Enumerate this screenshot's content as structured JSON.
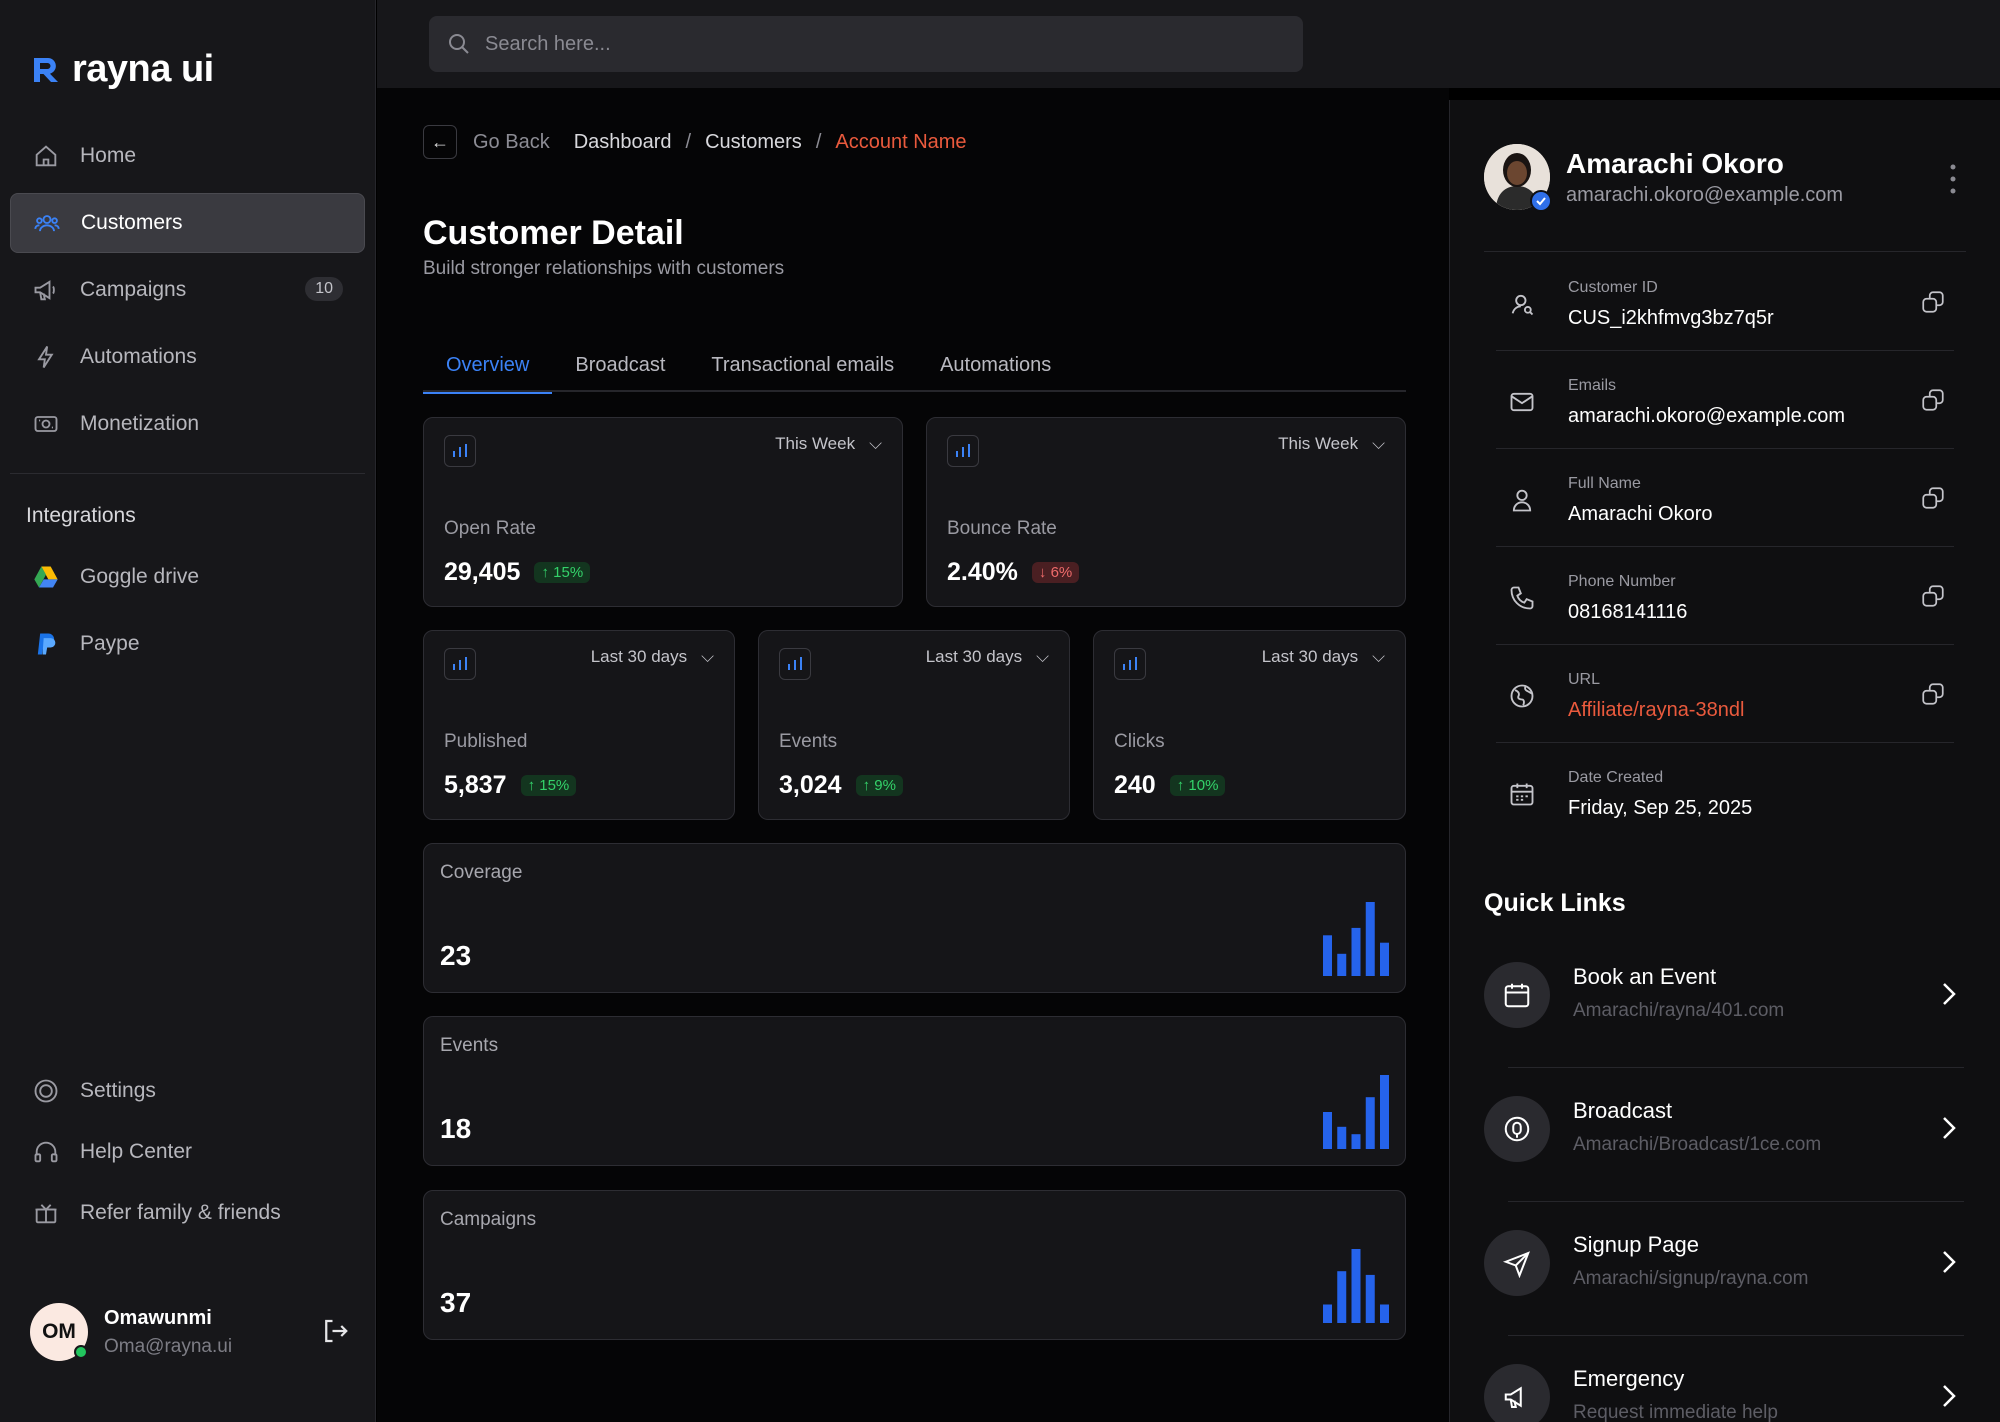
{
  "brand": {
    "name": "rayna ui"
  },
  "search": {
    "placeholder": "Search here..."
  },
  "sidebar": {
    "items": [
      {
        "label": "Home",
        "icon": "home-icon"
      },
      {
        "label": "Customers",
        "icon": "users-icon",
        "active": true
      },
      {
        "label": "Campaigns",
        "icon": "megaphone-icon",
        "badge": "10"
      },
      {
        "label": "Automations",
        "icon": "bolt-icon"
      },
      {
        "label": "Monetization",
        "icon": "cash-icon"
      }
    ],
    "integrations_title": "Integrations",
    "integrations": [
      {
        "label": "Goggle drive",
        "icon": "google-drive-icon"
      },
      {
        "label": "Paype",
        "icon": "paypal-icon"
      }
    ],
    "bottom": [
      {
        "label": "Settings",
        "icon": "settings-icon"
      },
      {
        "label": "Help Center",
        "icon": "headset-icon"
      },
      {
        "label": "Refer family & friends",
        "icon": "gift-icon"
      }
    ],
    "user": {
      "initials": "OM",
      "name": "Omawunmi",
      "email": "Oma@rayna.ui",
      "status": "online"
    }
  },
  "breadcrumb": {
    "back": "Go Back",
    "items": [
      "Dashboard",
      "Customers"
    ],
    "current": "Account Name",
    "sep": "/"
  },
  "page": {
    "title": "Customer Detail",
    "subtitle": "Build stronger relationships with customers"
  },
  "tabs": [
    "Overview",
    "Broadcast",
    "Transactional emails",
    "Automations"
  ],
  "stats_top": [
    {
      "range": "This Week",
      "label": "Open Rate",
      "value": "29,405",
      "change": "15%",
      "trend": "up"
    },
    {
      "range": "This Week",
      "label": "Bounce Rate",
      "value": "2.40%",
      "change": "6%",
      "trend": "down"
    }
  ],
  "stats_mid": [
    {
      "range": "Last 30 days",
      "label": "Published",
      "value": "5,837",
      "change": "15%",
      "trend": "up"
    },
    {
      "range": "Last 30 days",
      "label": "Events",
      "value": "3,024",
      "change": "9%",
      "trend": "up"
    },
    {
      "range": "Last 30 days",
      "label": "Clicks",
      "value": "240",
      "change": "10%",
      "trend": "up"
    }
  ],
  "summary": [
    {
      "label": "Coverage",
      "value": "23",
      "bars": [
        0.55,
        0.3,
        0.65,
        1.0,
        0.45
      ]
    },
    {
      "label": "Events",
      "value": "18",
      "bars": [
        0.5,
        0.3,
        0.2,
        0.7,
        1.0
      ]
    },
    {
      "label": "Campaigns",
      "value": "37",
      "bars": [
        0.25,
        0.7,
        1.0,
        0.65,
        0.25
      ]
    }
  ],
  "customer": {
    "name": "Amarachi Okoro",
    "email": "amarachi.okoro@example.com",
    "fields": [
      {
        "label": "Customer ID",
        "value": "CUS_i2khfmvg3bz7q5r",
        "icon": "user-search-icon",
        "copy": true
      },
      {
        "label": "Emails",
        "value": "amarachi.okoro@example.com",
        "icon": "mail-icon",
        "copy": true
      },
      {
        "label": "Full Name",
        "value": "Amarachi Okoro",
        "icon": "user-icon",
        "copy": true
      },
      {
        "label": "Phone Number",
        "value": "08168141116",
        "icon": "phone-icon",
        "copy": true
      },
      {
        "label": "URL",
        "value": "Affiliate/rayna-38ndl",
        "icon": "globe-icon",
        "copy": true,
        "link": true
      },
      {
        "label": "Date Created",
        "value": "Friday, Sep 25, 2025",
        "icon": "calendar-icon",
        "copy": false
      }
    ]
  },
  "quick_links": {
    "title": "Quick Links",
    "items": [
      {
        "name": "Book an Event",
        "url": "Amarachi/rayna/401.com",
        "icon": "calendar-icon"
      },
      {
        "name": "Broadcast",
        "url": "Amarachi/Broadcast/1ce.com",
        "icon": "microphone-icon"
      },
      {
        "name": "Signup Page",
        "url": "Amarachi/signup/rayna.com",
        "icon": "send-icon"
      },
      {
        "name": "Emergency",
        "url": "Request immediate help",
        "icon": "megaphone-icon"
      }
    ]
  },
  "colors": {
    "accent": "#3b82f6",
    "link": "#ea5a3d",
    "up": "#34d26a",
    "down": "#ef6b6b",
    "bars": "#2563eb"
  }
}
